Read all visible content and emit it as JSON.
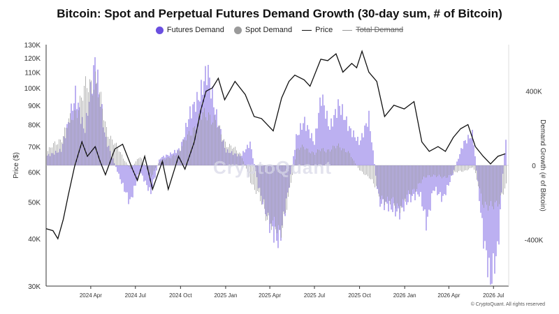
{
  "title": "Bitcoin: Spot and Perpetual Futures Demand Growth (30-day sum, # of Bitcoin)",
  "legend": {
    "futures": "Futures Demand",
    "spot": "Spot Demand",
    "price": "Price",
    "total": "Total Demand"
  },
  "colors": {
    "futures": "#6a4fe0",
    "spot": "#9a9a9a",
    "price": "#111111",
    "total": "#999999"
  },
  "watermark": "CryptoQuant",
  "footer": "© CryptoQuant. All rights reserved",
  "chart_data": {
    "type": "area",
    "ylabel_left": "Price ($)",
    "ylabel_right": "Demand Growth (# of Bitcoin)",
    "left_axis_scale": "log",
    "left_ylim": [
      30000,
      130000
    ],
    "left_ticks": [
      "30K",
      "40K",
      "50K",
      "60K",
      "70K",
      "80K",
      "90K",
      "100K",
      "110K",
      "120K",
      "130K"
    ],
    "left_tick_values": [
      30000,
      40000,
      50000,
      60000,
      70000,
      80000,
      90000,
      100000,
      110000,
      120000,
      130000
    ],
    "right_ylim": [
      -650000,
      650000
    ],
    "right_ticks": [
      "400K",
      "0",
      "-400K"
    ],
    "right_tick_values": [
      400000,
      0,
      -400000
    ],
    "x_tick_labels": [
      "2024 Apr",
      "2024 Jul",
      "2024 Oct",
      "2025 Jan",
      "2025 Apr",
      "2025 Jul",
      "2025 Oct",
      "2026 Jan",
      "2026 Apr",
      "2026 Jul"
    ],
    "x_tick_dates": [
      "2024-04-01",
      "2024-07-01",
      "2024-10-01",
      "2025-01-01",
      "2025-04-01",
      "2025-07-01",
      "2025-10-01",
      "2026-01-01",
      "2026-04-01",
      "2026-07-01"
    ],
    "x_range": [
      "2024-01-01",
      "2026-08-01"
    ],
    "price": {
      "dates": [
        "2024-01-01",
        "2024-01-15",
        "2024-01-25",
        "2024-02-05",
        "2024-02-15",
        "2024-02-28",
        "2024-03-14",
        "2024-03-25",
        "2024-04-10",
        "2024-04-20",
        "2024-05-01",
        "2024-05-20",
        "2024-06-05",
        "2024-06-25",
        "2024-07-05",
        "2024-07-20",
        "2024-08-05",
        "2024-08-25",
        "2024-09-06",
        "2024-09-27",
        "2024-10-10",
        "2024-10-29",
        "2024-11-12",
        "2024-11-22",
        "2024-12-05",
        "2024-12-17",
        "2024-12-30",
        "2025-01-20",
        "2025-02-10",
        "2025-02-28",
        "2025-03-15",
        "2025-04-08",
        "2025-04-25",
        "2025-05-10",
        "2025-05-22",
        "2025-06-10",
        "2025-06-22",
        "2025-07-14",
        "2025-07-28",
        "2025-08-14",
        "2025-08-28",
        "2025-09-15",
        "2025-09-25",
        "2025-10-06",
        "2025-10-20",
        "2025-11-05",
        "2025-11-21",
        "2025-12-10",
        "2025-12-31",
        "2026-01-20",
        "2026-02-05",
        "2026-02-20",
        "2026-03-10",
        "2026-03-25",
        "2026-04-10",
        "2026-04-25",
        "2026-05-10",
        "2026-05-25",
        "2026-06-10",
        "2026-06-25",
        "2026-07-10",
        "2026-07-25"
      ],
      "values": [
        42500,
        42000,
        40000,
        45000,
        52000,
        62000,
        72000,
        66000,
        70000,
        64000,
        59000,
        69000,
        71000,
        61000,
        57000,
        66000,
        54000,
        64000,
        54000,
        66000,
        61000,
        72000,
        88000,
        98000,
        100000,
        106000,
        93000,
        104000,
        96000,
        84000,
        83000,
        77000,
        94000,
        104000,
        108000,
        105000,
        101000,
        119000,
        118000,
        123000,
        110000,
        116000,
        113000,
        125000,
        110000,
        104000,
        84000,
        90000,
        88000,
        92000,
        72000,
        68000,
        70000,
        68000,
        74000,
        78000,
        80000,
        70000,
        66000,
        63000,
        66000,
        67000
      ]
    },
    "futures_demand": {
      "dates": [
        "2024-01-01",
        "2024-02-01",
        "2024-03-01",
        "2024-03-20",
        "2024-04-10",
        "2024-05-01",
        "2024-06-01",
        "2024-06-20",
        "2024-07-10",
        "2024-08-01",
        "2024-08-20",
        "2024-09-10",
        "2024-10-01",
        "2024-10-20",
        "2024-11-10",
        "2024-11-25",
        "2024-12-10",
        "2025-01-01",
        "2025-02-01",
        "2025-02-20",
        "2025-03-10",
        "2025-04-01",
        "2025-04-20",
        "2025-05-10",
        "2025-05-25",
        "2025-06-10",
        "2025-07-01",
        "2025-07-15",
        "2025-08-01",
        "2025-08-20",
        "2025-09-10",
        "2025-10-01",
        "2025-10-20",
        "2025-11-10",
        "2025-12-01",
        "2025-12-20",
        "2026-01-10",
        "2026-02-01",
        "2026-02-15",
        "2026-03-01",
        "2026-03-20",
        "2026-04-10",
        "2026-05-01",
        "2026-05-20",
        "2026-06-10",
        "2026-06-25",
        "2026-07-10",
        "2026-07-25"
      ],
      "values": [
        50000,
        80000,
        380000,
        180000,
        560000,
        150000,
        -80000,
        -200000,
        -30000,
        -150000,
        40000,
        60000,
        90000,
        280000,
        380000,
        520000,
        300000,
        80000,
        50000,
        120000,
        -120000,
        -320000,
        -420000,
        -120000,
        150000,
        240000,
        120000,
        380000,
        200000,
        330000,
        200000,
        120000,
        260000,
        -200000,
        -220000,
        -260000,
        -180000,
        -150000,
        -320000,
        -120000,
        -180000,
        -40000,
        120000,
        170000,
        -380000,
        -620000,
        -450000,
        130000
      ]
    },
    "spot_demand": {
      "dates": [
        "2024-01-01",
        "2024-02-01",
        "2024-03-01",
        "2024-03-20",
        "2024-04-10",
        "2024-05-01",
        "2024-06-01",
        "2024-06-20",
        "2024-07-10",
        "2024-08-01",
        "2024-08-20",
        "2024-09-10",
        "2024-10-01",
        "2024-10-20",
        "2024-11-10",
        "2024-11-25",
        "2024-12-10",
        "2025-01-01",
        "2025-02-01",
        "2025-02-20",
        "2025-03-10",
        "2025-04-01",
        "2025-04-20",
        "2025-05-10",
        "2025-05-25",
        "2025-06-10",
        "2025-07-01",
        "2025-07-15",
        "2025-08-01",
        "2025-08-20",
        "2025-09-10",
        "2025-10-01",
        "2025-10-20",
        "2025-11-10",
        "2025-12-01",
        "2025-12-20",
        "2026-01-10",
        "2026-02-01",
        "2026-02-15",
        "2026-03-01",
        "2026-03-20",
        "2026-04-10",
        "2026-05-01",
        "2026-05-20",
        "2026-06-10",
        "2026-06-25",
        "2026-07-10",
        "2026-07-25"
      ],
      "values": [
        70000,
        150000,
        300000,
        400000,
        480000,
        200000,
        60000,
        -20000,
        50000,
        -60000,
        30000,
        40000,
        90000,
        180000,
        250000,
        290000,
        230000,
        120000,
        60000,
        -80000,
        -180000,
        -300000,
        -380000,
        -150000,
        80000,
        100000,
        60000,
        90000,
        80000,
        110000,
        60000,
        -30000,
        -60000,
        -160000,
        -200000,
        -220000,
        -160000,
        -90000,
        -60000,
        -50000,
        -70000,
        -40000,
        -30000,
        -10000,
        -200000,
        -240000,
        -190000,
        -120000
      ]
    }
  }
}
